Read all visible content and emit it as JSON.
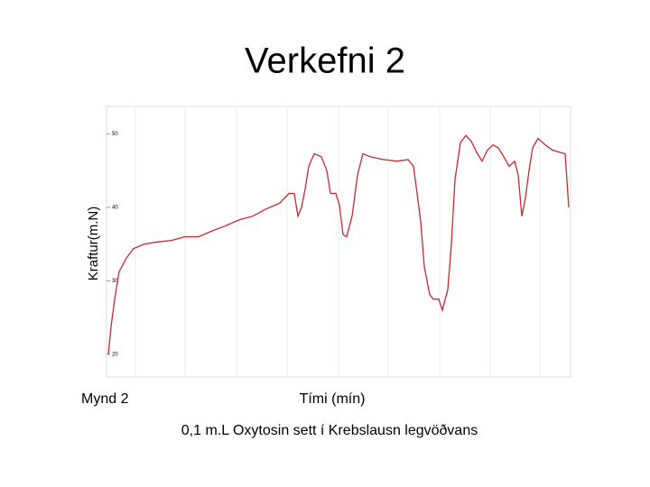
{
  "chart_data": {
    "type": "line",
    "title": "Verkefni 2",
    "y_label": "Kraftur(m.N)",
    "x_label": "Tími (mín)",
    "figure_label": "Mynd 2",
    "caption": "0,1 m.L Oxytosin sett í Krebslausn legvöðvans",
    "x": [
      0,
      0.3,
      0.7,
      1.2,
      2,
      2.8,
      4,
      5.5,
      7,
      8.5,
      10,
      11.5,
      13,
      14.5,
      16,
      17.5,
      19,
      20,
      20.6,
      21,
      21.4,
      21.8,
      22.2,
      22.8,
      23.6,
      24.2,
      24.6,
      25.2,
      25.6,
      26,
      26.4,
      27,
      27.6,
      28.2,
      29,
      30.5,
      32,
      33.2,
      33.8,
      34.2,
      34.6,
      35,
      35.6,
      36,
      36.6,
      37,
      37.6,
      38,
      38.4,
      39,
      39.6,
      40.2,
      40.8,
      41.4,
      42,
      42.6,
      43.2,
      43.8,
      44.4,
      45,
      45.4,
      45.8,
      46.2,
      46.6,
      47,
      47.6,
      48.4,
      49.2,
      50,
      50.6,
      51
    ],
    "series": [
      {
        "color": "#c8282e",
        "values": [
          20,
          23.75,
          27.5,
          31.25,
          33.1,
          34.4,
          35,
          35.3,
          35.5,
          36,
          36,
          36.8,
          37.5,
          38.3,
          38.8,
          39.8,
          40.6,
          41.9,
          41.9,
          38.8,
          40,
          42.5,
          45.6,
          47.3,
          46.9,
          45,
          41.9,
          41.9,
          40.3,
          36.3,
          36,
          38.8,
          44.4,
          47.3,
          46.9,
          46.5,
          46.3,
          46.5,
          45.6,
          41.9,
          38.1,
          31.9,
          28.1,
          27.5,
          27.5,
          26,
          28.8,
          35,
          43.8,
          48.8,
          49.8,
          49,
          47.5,
          46.3,
          47.8,
          48.5,
          48.1,
          46.9,
          45.6,
          46.3,
          44.4,
          38.8,
          41.3,
          45,
          48.1,
          49.4,
          48.5,
          47.8,
          47.5,
          47.3,
          40
        ]
      }
    ],
    "xlim": [
      -0.2,
      51.2
    ],
    "ylim": [
      16.9,
      53.75
    ],
    "yticks": [
      20,
      30,
      40,
      50
    ]
  }
}
